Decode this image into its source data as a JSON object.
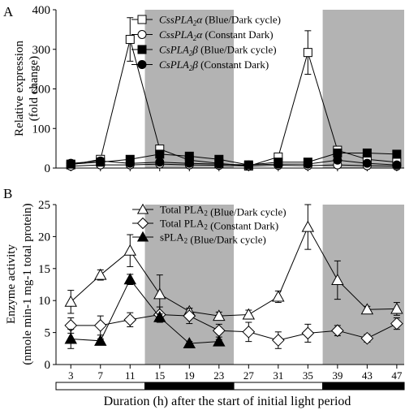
{
  "chart_data": [
    {
      "panel_label": "A",
      "type": "line",
      "ylabel": [
        "Relative expression",
        "(fold change)"
      ],
      "ylim": [
        0,
        400
      ],
      "yticks": [
        0,
        100,
        200,
        300,
        400
      ],
      "xlim": [
        1,
        48
      ],
      "shaded_intervals": [
        [
          13,
          25
        ],
        [
          37,
          48
        ]
      ],
      "legend_placement": "top-center",
      "series": [
        {
          "gene": "CssPLA",
          "subscript": "2",
          "suffix": "α",
          "condition": " (Blue/Dark cycle)",
          "marker": "square",
          "fill": "#ffffff",
          "x": [
            3,
            7,
            11,
            15,
            19,
            23,
            27,
            31,
            35,
            39,
            43,
            47
          ],
          "y": [
            8,
            22,
            325,
            48,
            20,
            12,
            5,
            28,
            292,
            45,
            22,
            15
          ],
          "err": [
            0,
            0,
            55,
            0,
            0,
            0,
            0,
            0,
            55,
            0,
            0,
            0
          ]
        },
        {
          "gene": "CssPLA",
          "subscript": "2",
          "suffix": "α",
          "condition": " (Constant Dark)",
          "marker": "circle",
          "fill": "#ffffff",
          "x": [
            3,
            7,
            11,
            15,
            19,
            23,
            27,
            31,
            35,
            39,
            43,
            47
          ],
          "y": [
            5,
            8,
            8,
            10,
            8,
            7,
            5,
            7,
            6,
            8,
            6,
            5
          ],
          "err": [
            0,
            0,
            0,
            0,
            0,
            0,
            0,
            0,
            0,
            0,
            0,
            0
          ]
        },
        {
          "gene": "CsPLA",
          "subscript": "2",
          "suffix": "β",
          "condition": " (Blue/Dark cycle)",
          "marker": "square",
          "fill": "#000000",
          "x": [
            3,
            7,
            11,
            15,
            19,
            23,
            27,
            31,
            35,
            39,
            43,
            47
          ],
          "y": [
            10,
            15,
            22,
            35,
            30,
            22,
            8,
            15,
            15,
            38,
            38,
            35
          ],
          "err": [
            0,
            0,
            0,
            0,
            0,
            0,
            0,
            0,
            0,
            0,
            0,
            0
          ]
        },
        {
          "gene": "CsPLA",
          "subscript": "2",
          "suffix": "β",
          "condition": " (Constant Dark)",
          "marker": "circle",
          "fill": "#000000",
          "x": [
            3,
            7,
            11,
            15,
            19,
            23,
            27,
            31,
            35,
            39,
            43,
            47
          ],
          "y": [
            12,
            18,
            12,
            15,
            12,
            10,
            8,
            10,
            10,
            20,
            12,
            8
          ],
          "err": [
            0,
            0,
            0,
            0,
            0,
            0,
            0,
            0,
            0,
            0,
            0,
            0
          ]
        }
      ]
    },
    {
      "panel_label": "B",
      "type": "line",
      "ylabel": [
        "Enzyme activity",
        "(nmole min-1 mg-1 total protein)"
      ],
      "ylim": [
        0,
        25
      ],
      "yticks": [
        0,
        5,
        10,
        15,
        20,
        25
      ],
      "xlim": [
        1,
        48
      ],
      "xticks": [
        3,
        7,
        11,
        15,
        19,
        23,
        27,
        31,
        35,
        39,
        43,
        47
      ],
      "xlabel": "Duration (h) after the start of initial light period",
      "shaded_intervals": [
        [
          13,
          25
        ],
        [
          37,
          48
        ]
      ],
      "light_bar": [
        {
          "from": 1,
          "to": 13,
          "state": "light"
        },
        {
          "from": 13,
          "to": 25,
          "state": "dark"
        },
        {
          "from": 25,
          "to": 37,
          "state": "light"
        },
        {
          "from": 37,
          "to": 48,
          "state": "dark"
        }
      ],
      "legend_placement": "top-center",
      "series": [
        {
          "gene": "Total PLA",
          "subscript": "2",
          "suffix": "",
          "condition": " (Blue/Dark cycle)",
          "marker": "triangle",
          "fill": "#ffffff",
          "x": [
            3,
            7,
            11,
            15,
            19,
            23,
            27,
            31,
            35,
            39,
            43,
            47
          ],
          "y": [
            9.8,
            14,
            17.8,
            11,
            8.3,
            7.6,
            7.8,
            10.6,
            21.5,
            13.2,
            8.6,
            8.7
          ],
          "err": [
            1.8,
            0.8,
            2.5,
            3,
            0.5,
            0.6,
            0.7,
            0.9,
            3.5,
            3,
            0.5,
            1
          ]
        },
        {
          "gene": "Total PLA",
          "subscript": "2",
          "suffix": "",
          "condition": " (Constant Dark)",
          "marker": "diamond",
          "fill": "#ffffff",
          "x": [
            3,
            7,
            11,
            15,
            19,
            23,
            27,
            31,
            35,
            39,
            43,
            47
          ],
          "y": [
            6.1,
            6.1,
            7,
            7.8,
            7.6,
            5.3,
            5.1,
            3.8,
            4.9,
            5.3,
            4.1,
            6.4
          ],
          "err": [
            1.2,
            1.5,
            1.1,
            1.2,
            1.2,
            1.0,
            1.5,
            1.3,
            1.4,
            0.8,
            0.6,
            0.9
          ]
        },
        {
          "gene": "sPLA",
          "subscript": "2",
          "suffix": "",
          "condition": " (Blue/Dark cycle)",
          "marker": "triangle",
          "fill": "#000000",
          "x": [
            3,
            7,
            11,
            15,
            19,
            23
          ],
          "y": [
            4,
            3.7,
            13.3,
            7.4,
            3.3,
            3.6
          ],
          "err": [
            1.5,
            0.3,
            0.8,
            0.5,
            0.3,
            0.3
          ]
        }
      ]
    }
  ]
}
